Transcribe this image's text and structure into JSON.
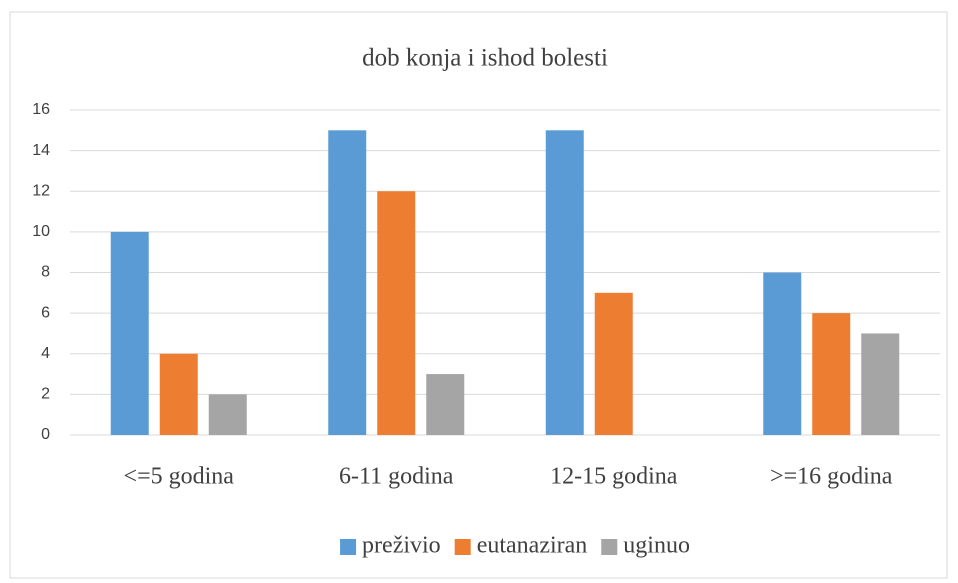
{
  "chart_data": {
    "type": "bar",
    "title": "dob konja i ishod bolesti",
    "categories": [
      "<=5 godina",
      "6-11 godina",
      "12-15 godina",
      ">=16 godina"
    ],
    "series": [
      {
        "name": "preživio",
        "color": "#5b9bd5",
        "values": [
          10,
          15,
          15,
          8
        ]
      },
      {
        "name": "eutanaziran",
        "color": "#ed7d31",
        "values": [
          4,
          12,
          7,
          6
        ]
      },
      {
        "name": "uginuo",
        "color": "#a5a5a5",
        "values": [
          2,
          3,
          0,
          5
        ]
      }
    ],
    "ylim": [
      0,
      16
    ],
    "yticks": [
      0,
      2,
      4,
      6,
      8,
      10,
      12,
      14,
      16
    ],
    "grid": true,
    "legend": "bottom"
  }
}
